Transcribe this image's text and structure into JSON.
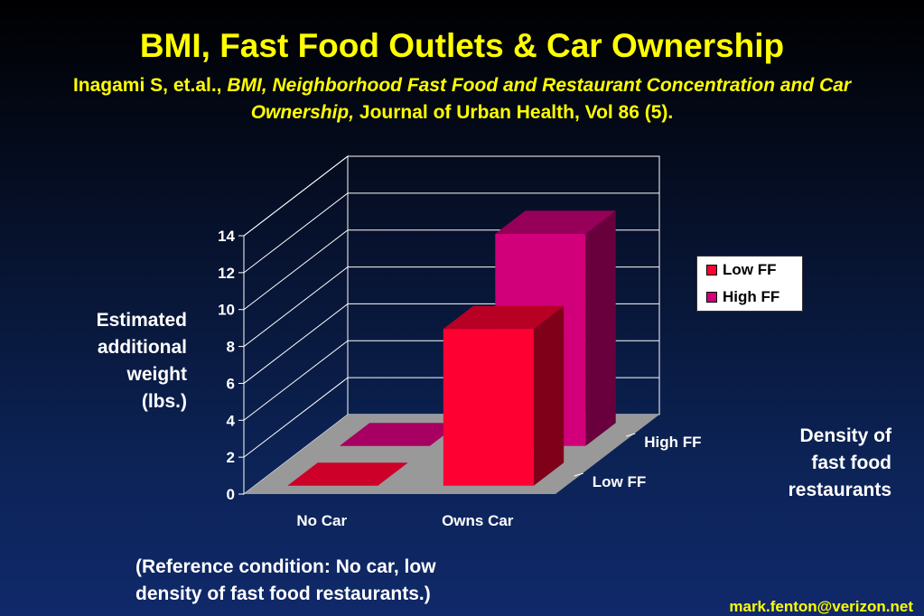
{
  "slide": {
    "title": "BMI, Fast Food Outlets & Car Ownership",
    "citation": {
      "authors": "Inagami S, et.al.,",
      "article_title": "BMI, Neighborhood Fast Food and Restaurant Concentration and Car Ownership,",
      "journal": "Journal of Urban Health, Vol 86 (5)."
    },
    "note_line1": "(Reference condition: No car, low",
    "note_line2": "density of fast food restaurants.)",
    "email": "mark.fenton@verizon.net"
  },
  "chart_data": {
    "type": "bar",
    "title": "",
    "ylabel_lines": [
      "Estimated",
      "additional",
      "weight",
      "(lbs.)"
    ],
    "zlabel_lines": [
      "Density of",
      "fast food",
      "restaurants"
    ],
    "categories": [
      "No Car",
      "Owns Car"
    ],
    "depth_categories": [
      "Low FF",
      "High FF"
    ],
    "ylim": [
      0,
      14
    ],
    "yticks": [
      "0",
      "2",
      "4",
      "6",
      "8",
      "10",
      "12",
      "14"
    ],
    "series": [
      {
        "name": "Low FF",
        "values": [
          0,
          8.5
        ],
        "color": "#ff0033"
      },
      {
        "name": "High FF",
        "values": [
          0,
          11.5
        ],
        "color": "#d1007a"
      }
    ],
    "grid": true,
    "legend_position": "right",
    "floor_color": "#999999"
  }
}
